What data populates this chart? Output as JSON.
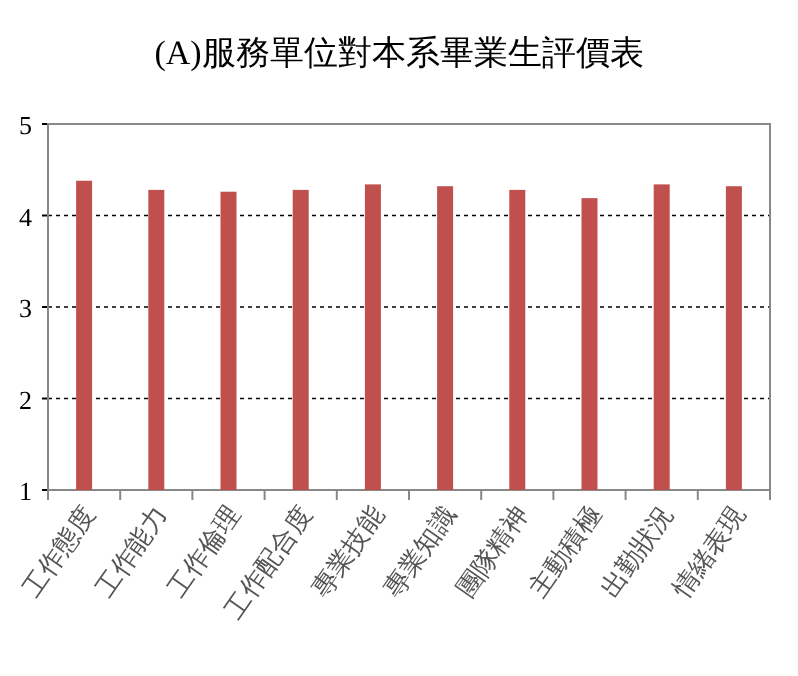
{
  "chart_data": {
    "type": "bar",
    "title": "(A)服務單位對本系畢業生評價表",
    "categories": [
      "工作態度",
      "工作能力",
      "工作倫理",
      "工作配合度",
      "專業技能",
      "專業知識",
      "團隊精神",
      "主動積極",
      "出勤狀況",
      "情緒表現"
    ],
    "values": [
      4.38,
      4.28,
      4.26,
      4.28,
      4.34,
      4.32,
      4.28,
      4.19,
      4.34,
      4.32
    ],
    "color": "#c0504d",
    "ylim": [
      1,
      5
    ],
    "yticks": [
      1,
      2,
      3,
      4,
      5
    ],
    "grid": "y"
  }
}
